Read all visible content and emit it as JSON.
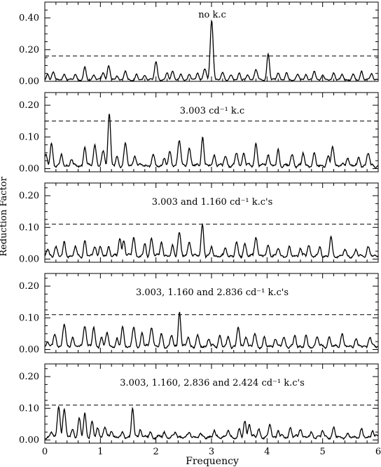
{
  "figure": {
    "ylabel": "Reduction Factor",
    "xlabel": "Frequency"
  },
  "chart_data": [
    {
      "type": "line",
      "annotation": "no k.c",
      "xlim": [
        0,
        6
      ],
      "ylim": [
        0,
        0.5
      ],
      "yticks": [
        "0.00",
        "0.20",
        "0.40"
      ],
      "yticks_values": [
        0,
        0.2,
        0.4
      ],
      "threshold": 0.16,
      "peaks": [
        [
          0.05,
          0.04
        ],
        [
          0.15,
          0.055
        ],
        [
          0.35,
          0.04
        ],
        [
          0.55,
          0.04
        ],
        [
          0.72,
          0.085
        ],
        [
          0.88,
          0.035
        ],
        [
          1.05,
          0.05
        ],
        [
          1.15,
          0.095
        ],
        [
          1.3,
          0.03
        ],
        [
          1.45,
          0.06
        ],
        [
          1.65,
          0.04
        ],
        [
          1.8,
          0.035
        ],
        [
          2.0,
          0.12
        ],
        [
          2.2,
          0.05
        ],
        [
          2.3,
          0.06
        ],
        [
          2.45,
          0.04
        ],
        [
          2.6,
          0.04
        ],
        [
          2.75,
          0.05
        ],
        [
          2.88,
          0.075
        ],
        [
          3.003,
          0.38
        ],
        [
          3.2,
          0.05
        ],
        [
          3.35,
          0.035
        ],
        [
          3.5,
          0.05
        ],
        [
          3.65,
          0.035
        ],
        [
          3.8,
          0.07
        ],
        [
          4.02,
          0.17
        ],
        [
          4.2,
          0.05
        ],
        [
          4.35,
          0.05
        ],
        [
          4.55,
          0.04
        ],
        [
          4.7,
          0.04
        ],
        [
          4.85,
          0.06
        ],
        [
          5.0,
          0.035
        ],
        [
          5.2,
          0.05
        ],
        [
          5.35,
          0.04
        ],
        [
          5.55,
          0.04
        ],
        [
          5.7,
          0.06
        ],
        [
          5.88,
          0.045
        ]
      ]
    },
    {
      "type": "line",
      "annotation": "3.003 cd⁻¹ k.c",
      "xlim": [
        0,
        6
      ],
      "ylim": [
        -0.01,
        0.24
      ],
      "yticks": [
        "0.00",
        "0.10",
        "0.20"
      ],
      "yticks_values": [
        0,
        0.1,
        0.2
      ],
      "threshold": 0.15,
      "peaks": [
        [
          0.02,
          0.04
        ],
        [
          0.12,
          0.075
        ],
        [
          0.3,
          0.04
        ],
        [
          0.48,
          0.025
        ],
        [
          0.72,
          0.065
        ],
        [
          0.9,
          0.07
        ],
        [
          1.05,
          0.05
        ],
        [
          1.16,
          0.17
        ],
        [
          1.3,
          0.035
        ],
        [
          1.45,
          0.075
        ],
        [
          1.62,
          0.035
        ],
        [
          1.95,
          0.04
        ],
        [
          2.15,
          0.03
        ],
        [
          2.25,
          0.05
        ],
        [
          2.42,
          0.085
        ],
        [
          2.6,
          0.06
        ],
        [
          2.84,
          0.095
        ],
        [
          3.05,
          0.04
        ],
        [
          3.25,
          0.035
        ],
        [
          3.45,
          0.045
        ],
        [
          3.58,
          0.045
        ],
        [
          3.8,
          0.075
        ],
        [
          4.02,
          0.04
        ],
        [
          4.2,
          0.055
        ],
        [
          4.45,
          0.04
        ],
        [
          4.65,
          0.045
        ],
        [
          4.85,
          0.045
        ],
        [
          5.1,
          0.035
        ],
        [
          5.18,
          0.065
        ],
        [
          5.45,
          0.03
        ],
        [
          5.65,
          0.03
        ],
        [
          5.82,
          0.045
        ]
      ]
    },
    {
      "type": "line",
      "annotation": "3.003 and 1.160 cd⁻¹ k.c's",
      "xlim": [
        0,
        6
      ],
      "ylim": [
        -0.01,
        0.24
      ],
      "yticks": [
        "0.00",
        "0.10",
        "0.20"
      ],
      "yticks_values": [
        0,
        0.1,
        0.2
      ],
      "threshold": 0.11,
      "peaks": [
        [
          0.05,
          0.025
        ],
        [
          0.2,
          0.035
        ],
        [
          0.35,
          0.05
        ],
        [
          0.55,
          0.035
        ],
        [
          0.72,
          0.055
        ],
        [
          0.9,
          0.035
        ],
        [
          1.0,
          0.035
        ],
        [
          1.15,
          0.035
        ],
        [
          1.35,
          0.06
        ],
        [
          1.42,
          0.055
        ],
        [
          1.6,
          0.065
        ],
        [
          1.8,
          0.045
        ],
        [
          1.92,
          0.06
        ],
        [
          2.1,
          0.05
        ],
        [
          2.3,
          0.04
        ],
        [
          2.42,
          0.08
        ],
        [
          2.6,
          0.05
        ],
        [
          2.836,
          0.105
        ],
        [
          3.0,
          0.035
        ],
        [
          3.25,
          0.03
        ],
        [
          3.45,
          0.05
        ],
        [
          3.6,
          0.045
        ],
        [
          3.8,
          0.065
        ],
        [
          4.02,
          0.04
        ],
        [
          4.2,
          0.03
        ],
        [
          4.4,
          0.035
        ],
        [
          4.6,
          0.03
        ],
        [
          4.75,
          0.04
        ],
        [
          4.95,
          0.035
        ],
        [
          5.15,
          0.065
        ],
        [
          5.4,
          0.025
        ],
        [
          5.6,
          0.025
        ],
        [
          5.82,
          0.035
        ]
      ]
    },
    {
      "type": "line",
      "annotation": "3.003, 1.160 and 2.836 cd⁻¹ k.c's",
      "xlim": [
        0,
        6
      ],
      "ylim": [
        -0.01,
        0.24
      ],
      "yticks": [
        "0.00",
        "0.10",
        "0.20"
      ],
      "yticks_values": [
        0,
        0.1,
        0.2
      ],
      "threshold": 0.11,
      "peaks": [
        [
          0.05,
          0.02
        ],
        [
          0.18,
          0.045
        ],
        [
          0.35,
          0.075
        ],
        [
          0.5,
          0.035
        ],
        [
          0.72,
          0.07
        ],
        [
          0.88,
          0.065
        ],
        [
          1.02,
          0.035
        ],
        [
          1.12,
          0.05
        ],
        [
          1.3,
          0.03
        ],
        [
          1.4,
          0.07
        ],
        [
          1.6,
          0.065
        ],
        [
          1.75,
          0.05
        ],
        [
          1.92,
          0.065
        ],
        [
          2.1,
          0.045
        ],
        [
          2.28,
          0.04
        ],
        [
          2.424,
          0.115
        ],
        [
          2.58,
          0.035
        ],
        [
          2.75,
          0.04
        ],
        [
          2.95,
          0.03
        ],
        [
          3.15,
          0.04
        ],
        [
          3.3,
          0.035
        ],
        [
          3.48,
          0.065
        ],
        [
          3.62,
          0.035
        ],
        [
          3.78,
          0.045
        ],
        [
          3.95,
          0.035
        ],
        [
          4.15,
          0.03
        ],
        [
          4.3,
          0.035
        ],
        [
          4.5,
          0.04
        ],
        [
          4.7,
          0.04
        ],
        [
          4.9,
          0.035
        ],
        [
          5.12,
          0.035
        ],
        [
          5.35,
          0.045
        ],
        [
          5.6,
          0.03
        ],
        [
          5.85,
          0.035
        ]
      ]
    },
    {
      "type": "line",
      "annotation": "3.003, 1.160, 2.836 and 2.424 cd⁻¹ k.c's",
      "xlim": [
        0,
        6
      ],
      "ylim": [
        -0.01,
        0.24
      ],
      "yticks": [
        "0.00",
        "0.10",
        "0.20"
      ],
      "yticks_values": [
        0,
        0.1,
        0.2
      ],
      "threshold": 0.11,
      "peaks": [
        [
          0.12,
          0.02
        ],
        [
          0.25,
          0.1
        ],
        [
          0.35,
          0.09
        ],
        [
          0.5,
          0.03
        ],
        [
          0.62,
          0.065
        ],
        [
          0.72,
          0.08
        ],
        [
          0.85,
          0.055
        ],
        [
          0.95,
          0.035
        ],
        [
          1.08,
          0.035
        ],
        [
          1.2,
          0.025
        ],
        [
          1.4,
          0.02
        ],
        [
          1.58,
          0.095
        ],
        [
          1.72,
          0.03
        ],
        [
          1.9,
          0.02
        ],
        [
          2.15,
          0.02
        ],
        [
          2.35,
          0.02
        ],
        [
          2.6,
          0.02
        ],
        [
          2.8,
          0.015
        ],
        [
          3.05,
          0.025
        ],
        [
          3.3,
          0.025
        ],
        [
          3.5,
          0.03
        ],
        [
          3.6,
          0.055
        ],
        [
          3.68,
          0.045
        ],
        [
          3.85,
          0.03
        ],
        [
          4.05,
          0.045
        ],
        [
          4.2,
          0.025
        ],
        [
          4.42,
          0.035
        ],
        [
          4.6,
          0.03
        ],
        [
          4.8,
          0.02
        ],
        [
          5.0,
          0.025
        ],
        [
          5.2,
          0.035
        ],
        [
          5.45,
          0.015
        ],
        [
          5.7,
          0.03
        ],
        [
          5.9,
          0.025
        ]
      ]
    }
  ],
  "xaxis": {
    "ticks": [
      "0",
      "1",
      "2",
      "3",
      "4",
      "5",
      "6"
    ],
    "tick_values": [
      0,
      1,
      2,
      3,
      4,
      5,
      6
    ]
  }
}
